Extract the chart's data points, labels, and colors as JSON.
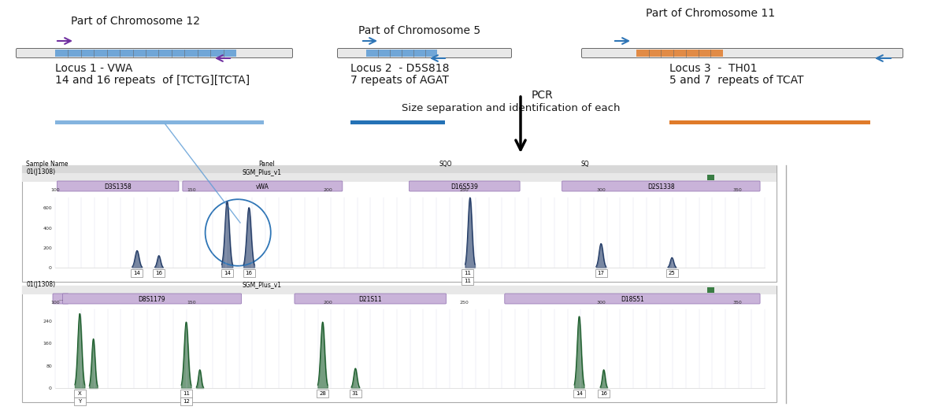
{
  "chr12_title": "Part of Chromosome 12",
  "chr5_title": "Part of Chromosome 5",
  "chr11_title": "Part of Chromosome 11",
  "locus1_title": "Locus 1 - VWA",
  "locus1_sub": "14 and 16 repeats  of [TCTG][TCTA]",
  "locus2_title": "Locus 2  - D5S818",
  "locus2_sub": "7 repeats of AGAT",
  "locus3_title": "Locus 3  -  TH01",
  "locus3_sub": "5 and 7  repeats of TCAT",
  "pcr_label": "PCR",
  "size_sep_label": "Size separation and identification of each",
  "chr_title_color": "#1a1a1a",
  "locus_title_color": "#1a1a1a",
  "locus_sub_color": "#1a1a1a",
  "purple_arrow_color": "#7030a0",
  "blue_arrow_color": "#2e75b6",
  "repeat_blue_color": "#5b9bd5",
  "repeat_orange_color": "#e07b2a",
  "locus_box_color": "#c9b3d9",
  "locus_box_edge_color": "#9070b0",
  "peak_color_blue": "#1f3864",
  "peak_color_green": "#1a5c2a",
  "grid_color": "#c8c8e0",
  "bar1_color": "#5b9bd5",
  "bar2_color": "#2472b6",
  "bar3_color": "#e07b2a",
  "panel_border_color": "#aaaaaa",
  "header_bg_color": "#d8d8d8",
  "row2_bg_color": "#e8e8e8"
}
